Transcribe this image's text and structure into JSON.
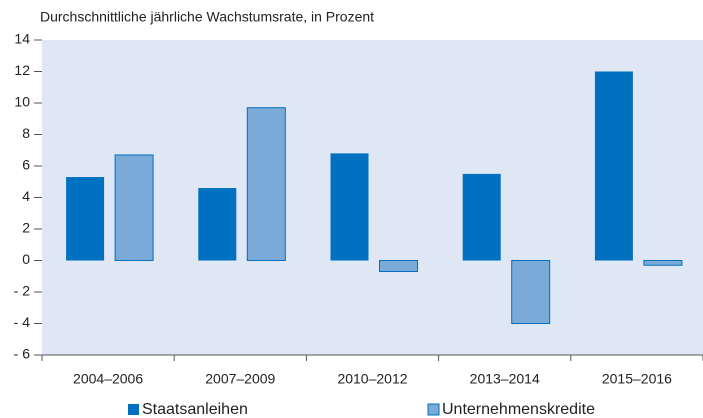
{
  "chart_data": {
    "type": "bar",
    "title": "Durchschnittliche jährliche Wachstumsrate, in Prozent",
    "categories": [
      "2004–2006",
      "2007–2009",
      "2010–2012",
      "2013–2014",
      "2015–2016"
    ],
    "series": [
      {
        "name": "Staatsanleihen",
        "color": "#0070c0",
        "values": [
          5.3,
          4.6,
          6.8,
          5.5,
          12.0
        ]
      },
      {
        "name": "Unternehmenskredite",
        "color": "#7aaad8",
        "values": [
          6.7,
          9.7,
          -0.7,
          -4.0,
          -0.3
        ]
      }
    ],
    "ylim": [
      -6,
      14
    ],
    "yticks": [
      {
        "value": -6,
        "label": "- 6"
      },
      {
        "value": -4,
        "label": "- 4"
      },
      {
        "value": -2,
        "label": "- 2"
      },
      0,
      2,
      4,
      6,
      8,
      10,
      12,
      14
    ],
    "legend": "bottom"
  }
}
